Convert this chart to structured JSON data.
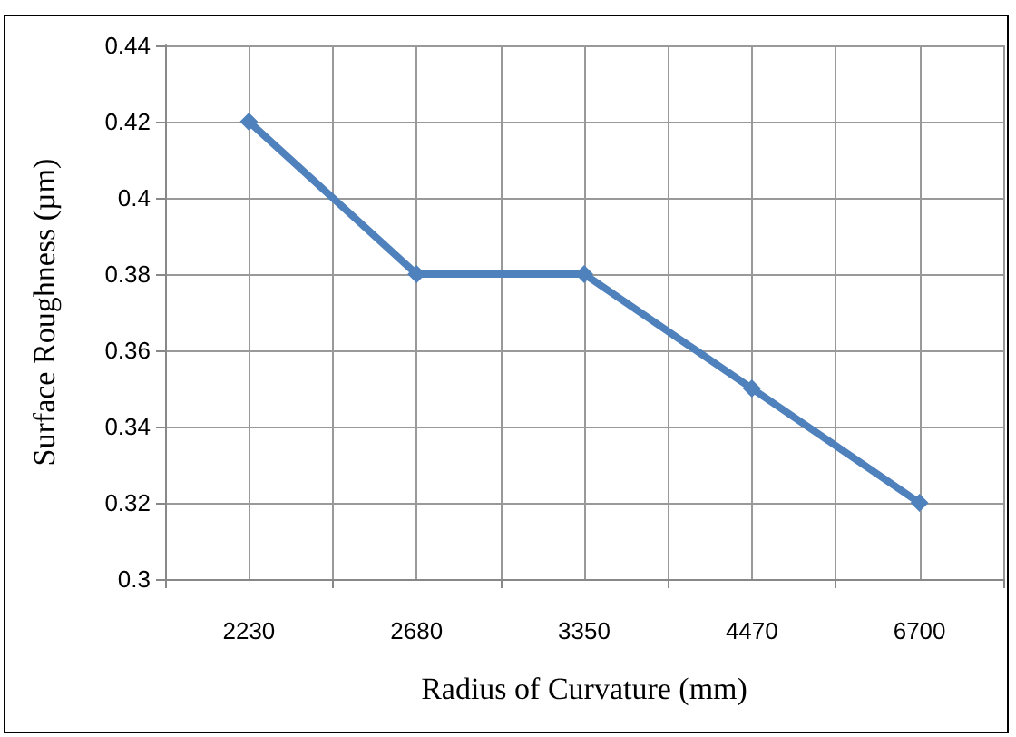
{
  "chart_data": {
    "type": "line",
    "xlabel": "Radius of Curvature (mm)",
    "ylabel": "Surface Roughness (µm)",
    "categories": [
      "2230",
      "2680",
      "3350",
      "4470",
      "6700"
    ],
    "series": [
      {
        "color": "#4f81bd",
        "values": [
          0.42,
          0.38,
          0.38,
          0.35,
          0.32
        ]
      }
    ],
    "ylim": [
      0.3,
      0.44
    ],
    "yticks": [
      0.3,
      0.32,
      0.34,
      0.36,
      0.38,
      0.4,
      0.42,
      0.44
    ],
    "grid": true,
    "marker": "diamond",
    "line_style": "solid"
  }
}
